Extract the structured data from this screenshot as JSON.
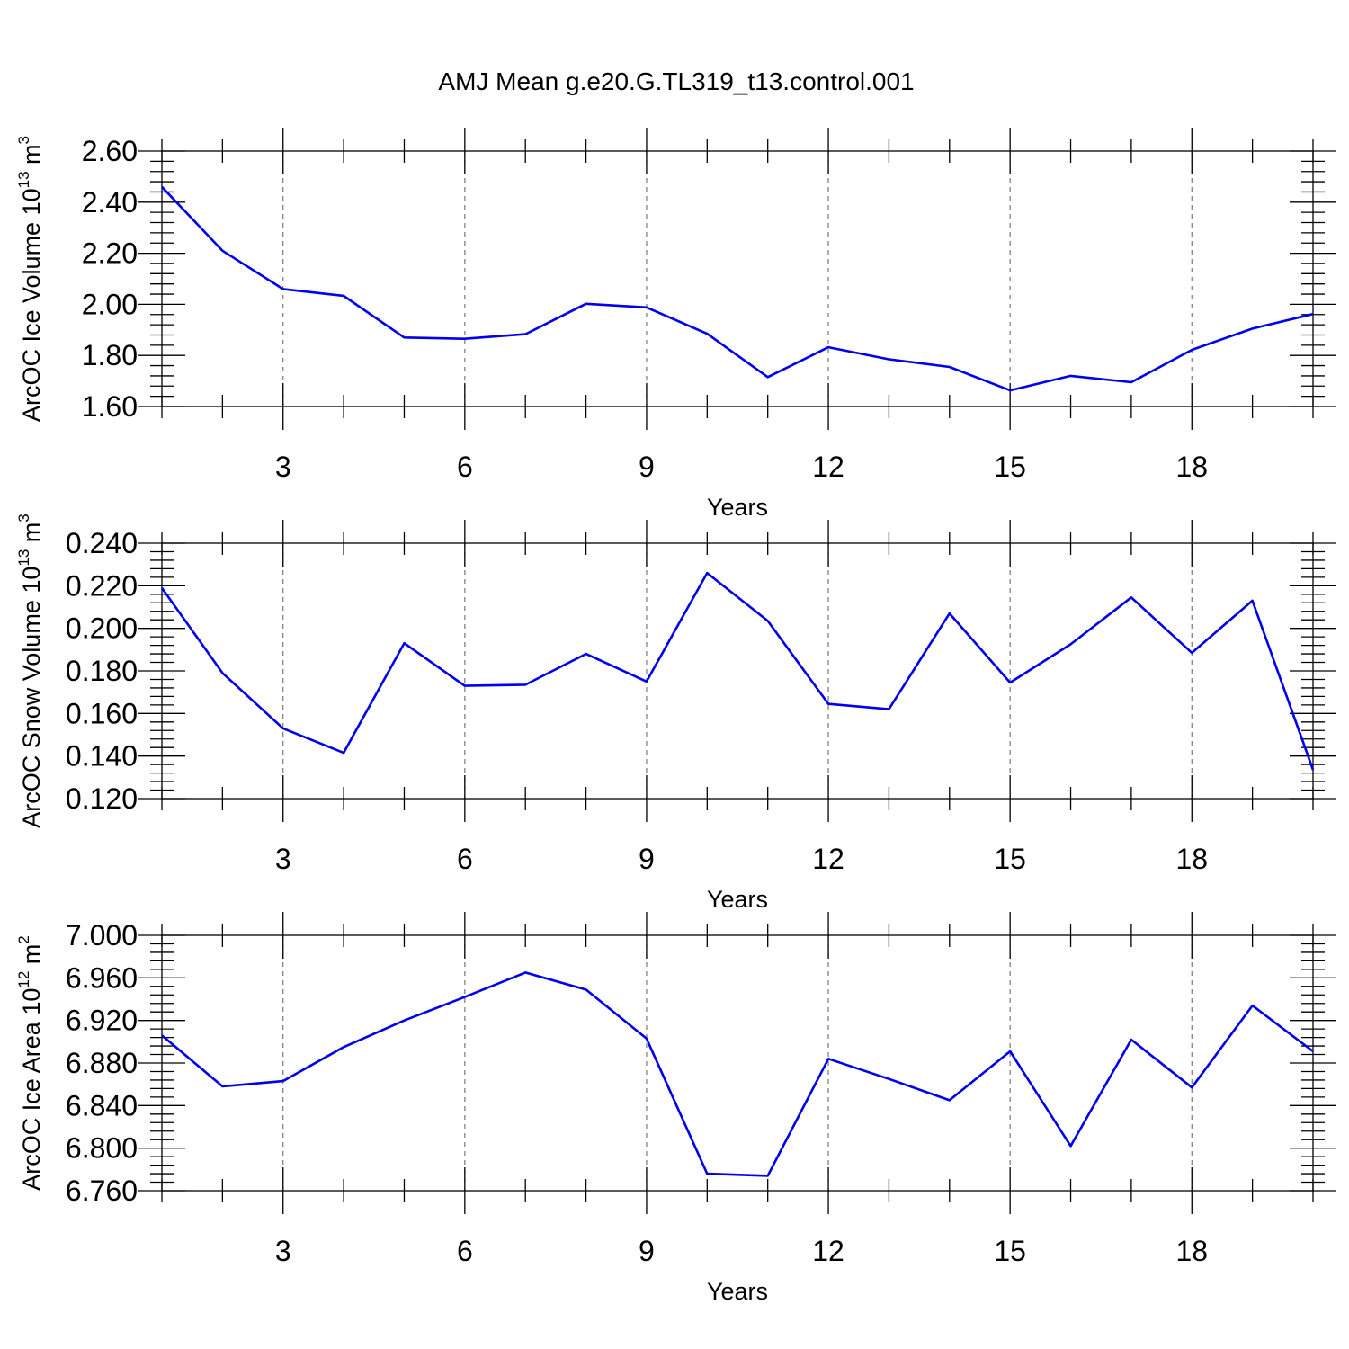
{
  "title": "AMJ Mean g.e20.G.TL319_t13.control.001",
  "line_color": "#0000ee",
  "chart_data": [
    {
      "type": "line",
      "ylabel": {
        "main": "ArcOC Ice Volume 10",
        "exp": "13",
        "unit": " m",
        "unit_exp": "3"
      },
      "xlabel": "Years",
      "x": [
        1,
        2,
        3,
        4,
        5,
        6,
        7,
        8,
        9,
        10,
        11,
        12,
        13,
        14,
        15,
        16,
        17,
        18,
        19,
        20
      ],
      "values": [
        2.46,
        2.21,
        2.06,
        2.033,
        1.87,
        1.865,
        1.883,
        2.002,
        1.988,
        1.885,
        1.715,
        1.832,
        1.785,
        1.755,
        1.663,
        1.72,
        1.695,
        1.822,
        1.905,
        1.962
      ],
      "xlim": [
        1,
        20
      ],
      "ylim": [
        1.6,
        2.6
      ],
      "xticks": [
        3,
        6,
        9,
        12,
        15,
        18
      ],
      "xtick_labels": [
        "3",
        "6",
        "9",
        "12",
        "15",
        "18"
      ],
      "yticks": [
        1.6,
        1.8,
        2.0,
        2.2,
        2.4,
        2.6
      ],
      "ytick_labels": [
        "1.60",
        "1.80",
        "2.00",
        "2.20",
        "2.40",
        "2.60"
      ],
      "grid": "vertical-dashed"
    },
    {
      "type": "line",
      "ylabel": {
        "main": "ArcOC Snow Volume 10",
        "exp": "13",
        "unit": " m",
        "unit_exp": "3"
      },
      "xlabel": "Years",
      "x": [
        1,
        2,
        3,
        4,
        5,
        6,
        7,
        8,
        9,
        10,
        11,
        12,
        13,
        14,
        15,
        16,
        17,
        18,
        19,
        20
      ],
      "values": [
        0.219,
        0.179,
        0.153,
        0.1415,
        0.193,
        0.173,
        0.1735,
        0.188,
        0.175,
        0.226,
        0.2035,
        0.1645,
        0.162,
        0.207,
        0.1745,
        0.1925,
        0.2145,
        0.1885,
        0.213,
        0.1335
      ],
      "xlim": [
        1,
        20
      ],
      "ylim": [
        0.12,
        0.24
      ],
      "xticks": [
        3,
        6,
        9,
        12,
        15,
        18
      ],
      "xtick_labels": [
        "3",
        "6",
        "9",
        "12",
        "15",
        "18"
      ],
      "yticks": [
        0.12,
        0.14,
        0.16,
        0.18,
        0.2,
        0.22,
        0.24
      ],
      "ytick_labels": [
        "0.120",
        "0.140",
        "0.160",
        "0.180",
        "0.200",
        "0.220",
        "0.240"
      ],
      "grid": "vertical-dashed"
    },
    {
      "type": "line",
      "ylabel": {
        "main": "ArcOC Ice Area 10",
        "exp": "12",
        "unit": " m",
        "unit_exp": "2"
      },
      "xlabel": "Years",
      "x": [
        1,
        2,
        3,
        4,
        5,
        6,
        7,
        8,
        9,
        10,
        11,
        12,
        13,
        14,
        15,
        16,
        17,
        18,
        19,
        20
      ],
      "values": [
        6.906,
        6.858,
        6.863,
        6.895,
        6.92,
        6.942,
        6.965,
        6.949,
        6.903,
        6.776,
        6.774,
        6.884,
        6.865,
        6.845,
        6.891,
        6.802,
        6.902,
        6.857,
        6.934,
        6.891
      ],
      "xlim": [
        1,
        20
      ],
      "ylim": [
        6.76,
        7.0
      ],
      "xticks": [
        3,
        6,
        9,
        12,
        15,
        18
      ],
      "xtick_labels": [
        "3",
        "6",
        "9",
        "12",
        "15",
        "18"
      ],
      "yticks": [
        6.76,
        6.8,
        6.84,
        6.88,
        6.92,
        6.96,
        7.0
      ],
      "ytick_labels": [
        "6.760",
        "6.800",
        "6.840",
        "6.880",
        "6.920",
        "6.960",
        "7.000"
      ],
      "grid": "vertical-dashed"
    }
  ]
}
